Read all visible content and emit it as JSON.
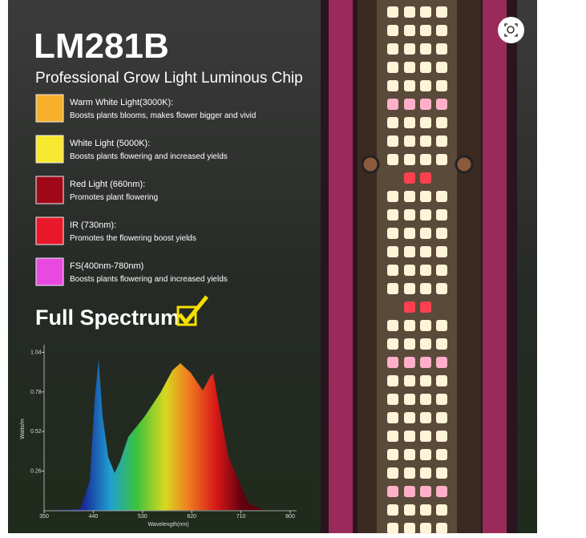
{
  "header": {
    "title": "LM281B",
    "subtitle": "Professional Grow Light Luminous Chip"
  },
  "features": [
    {
      "label": "Warm White Light(3000K):",
      "description": "Boosts plants blooms, makes flower bigger and vivid"
    },
    {
      "label": "White Light (5000K):",
      "description": "Boosts plants flowering and increased yields"
    },
    {
      "label": "Red Light (660nm):",
      "description": "Promotes plant flowering"
    },
    {
      "label": "IR (730nm):",
      "description": "Promotes the flowering boost yields"
    },
    {
      "label": "FS(400nm-780nm)",
      "description": "Boosts plants flowering and increased yields"
    }
  ],
  "badge": "Full Spectrum",
  "spectrum": {
    "y_label": "Watts/m",
    "x_label": "Wavelength(nm)",
    "yticks": [
      1.04,
      0.78,
      0.52,
      0.26
    ],
    "xticks": [
      350,
      440,
      530,
      620,
      710,
      800
    ]
  }
}
